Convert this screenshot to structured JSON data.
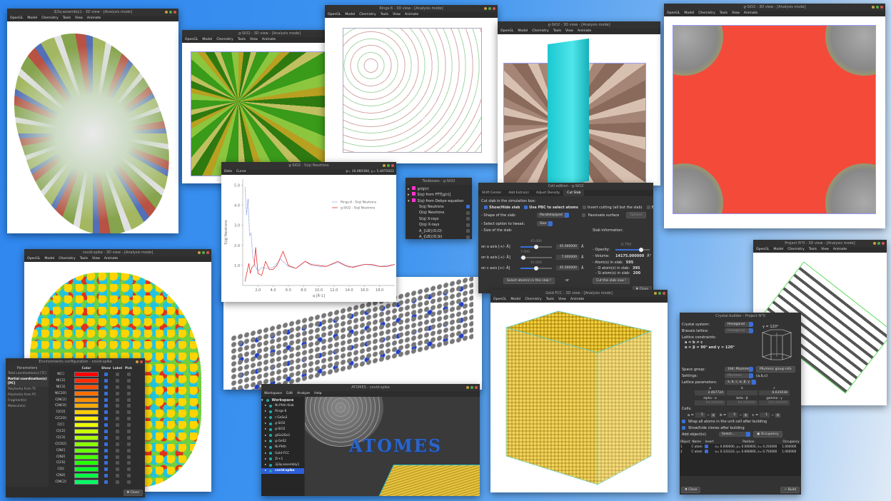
{
  "menus": {
    "view3d": [
      "OpenGL",
      "Model",
      "Chemistry",
      "Tools",
      "View",
      "Animate"
    ],
    "graph": [
      "Data",
      "Curve"
    ],
    "workspace": [
      "Workspace",
      "Edit",
      "Analyze",
      "Help"
    ]
  },
  "windows": {
    "assembly": {
      "title": "3j3q-assembly1 - 3D view - [Analysis mode]"
    },
    "sio2_poly": {
      "title": "g-SiO2 - 3D view - [Analysis mode]"
    },
    "rings": {
      "title": "Rings-6 - 3D view - [Analysis mode]"
    },
    "sio2_slab": {
      "title": "g-SiO2 - 3D view - [Analysis mode]"
    },
    "sio2_red": {
      "title": "g-SiO2 - 3D view - [Analysis mode]"
    },
    "covid": {
      "title": "covid-spike - 3D view - [Analysis mode]"
    },
    "gold": {
      "title": "Gold-FCC - 3D view - [Analysis mode]"
    },
    "project0": {
      "title": "Project N°0 - 3D view - [Analysis mode]"
    }
  },
  "graph": {
    "title": "g-SiO2 - S(q) Neutrons",
    "readout": "p= 16.080384, y= 5.4075022"
  },
  "chart_data": {
    "type": "line",
    "xlabel": "q [Å-1]",
    "ylabel": "S(q) Neutrons",
    "xlim": [
      0,
      20
    ],
    "ylim": [
      0,
      5.3
    ],
    "xticks": [
      "2.0",
      "4.0",
      "6.0",
      "8.0",
      "10.0",
      "12.0",
      "14.0",
      "16.0",
      "18.0"
    ],
    "yticks": [
      "1.0",
      "2.0",
      "3.0",
      "4.0",
      "5.0"
    ],
    "legend_position": "top-right",
    "series": [
      {
        "name": "Rings-6 - S(q) Neutrons",
        "color": "#4a6fd0",
        "style": "dotted",
        "x": [
          0.3,
          0.5,
          0.7,
          0.9,
          1.1,
          1.3,
          1.6,
          2.0,
          2.5,
          3.0,
          4.0,
          5.0,
          6.0,
          7.0,
          8.2,
          9.0,
          10.0,
          11.0,
          12.5,
          14.0,
          16.0,
          18.0,
          20.0
        ],
        "y": [
          4.9,
          3.5,
          4.3,
          2.5,
          2.6,
          1.5,
          1.0,
          0.7,
          0.9,
          0.85,
          0.9,
          1.3,
          0.95,
          0.85,
          1.2,
          1.0,
          0.95,
          0.95,
          1.15,
          0.9,
          1.05,
          0.95,
          1.05
        ]
      },
      {
        "name": "g-SiO2 - S(q) Neutrons",
        "color": "#e83030",
        "style": "solid",
        "x": [
          0.3,
          0.8,
          1.0,
          1.2,
          1.5,
          1.7,
          2.0,
          2.5,
          3.0,
          3.5,
          4.0,
          4.5,
          5.3,
          6.0,
          7.0,
          8.2,
          9.0,
          10.0,
          11.0,
          12.5,
          13.5,
          14.5,
          16.0,
          17.0,
          18.0,
          19.0,
          20.0
        ],
        "y": [
          0.2,
          1.1,
          0.6,
          0.9,
          1.0,
          1.9,
          0.6,
          0.5,
          1.2,
          0.8,
          0.8,
          1.0,
          1.7,
          1.0,
          0.85,
          1.2,
          1.05,
          1.0,
          0.95,
          1.2,
          1.0,
          0.9,
          1.05,
          1.05,
          0.95,
          0.95,
          1.05
        ]
      }
    ]
  },
  "toolboxes": {
    "title": "Toolboxes - g-SiO2",
    "items": [
      {
        "label": "gr/g(r)",
        "level": 0,
        "expander": "▸"
      },
      {
        "label": "S(q) from FFT[g(r)]",
        "level": 0,
        "expander": "▸"
      },
      {
        "label": "S(q) from Debye equation",
        "level": 0,
        "expander": "▾"
      },
      {
        "label": "S(q) Neutrons",
        "level": 1,
        "checked": true
      },
      {
        "label": "Q(q) Neutrons",
        "level": 1,
        "checked": false
      },
      {
        "label": "S(q) X-rays",
        "level": 1,
        "checked": false
      },
      {
        "label": "Q(q) X-rays",
        "level": 1,
        "checked": false
      },
      {
        "label": "A_{LB}(O,O)",
        "level": 1,
        "checked": false
      },
      {
        "label": "A_{LB}(O,Si)",
        "level": 1,
        "checked": false
      }
    ]
  },
  "cell_edition": {
    "title": "Cell edition - g-SiO2",
    "tabs": [
      "Shift Center",
      "Add Extra(s)",
      "Adjust Density",
      "Cut Slab"
    ],
    "active_tab": 3,
    "heading": "Cut slab in the simulation box:",
    "options": [
      {
        "label": "Show/Hide slab",
        "checked": true
      },
      {
        "label": "Use PBC to select atoms",
        "checked": true
      },
      {
        "label": "Invert cutting (all but the slab)",
        "checked": false
      },
      {
        "label": "Export in new project",
        "checked": false
      }
    ],
    "shape_label": "- Shape of the slab:",
    "shape_value": "Parallelepiped",
    "passivate_label": "Passivate surface",
    "options_button": "Options",
    "tweak_label": "- Select option to tweak:",
    "tweak_value": "Size",
    "size_label": "- Size of the slab:",
    "axes": [
      {
        "label": "on a axis [+/- Å]",
        "value": "45.000000",
        "slider_text": "45.000",
        "fraction": 0.5,
        "unit": "Å"
      },
      {
        "label": "on b axis [+/- Å]",
        "value": "7.000000",
        "slider_text": "7.000",
        "fraction": 0.1,
        "unit": "Å"
      },
      {
        "label": "on c axis [+/- Å]",
        "value": "45.000000",
        "slider_text": "45.000",
        "fraction": 0.5,
        "unit": "Å"
      }
    ],
    "info_title": "Slab information:",
    "opacity_label": "- Opacity:",
    "opacity_text": "0.750",
    "opacity": 0.75,
    "volume_label": "- Volume:",
    "volume_value": "14175.000000",
    "volume_unit": "Å³",
    "atoms_label": "- Atom(s) in slab:",
    "atoms_value": "595",
    "o_label": "- O atom(s) in slab:",
    "o_value": "395",
    "si_label": "- Si atom(s) in slab:",
    "si_value": "200",
    "select_button": "Select atom(s) in this slab !",
    "or_label": "or",
    "cut_button": "Cut this slab now !",
    "close_button": "Close"
  },
  "environments": {
    "title": "Environments configuration - covid-spike",
    "params_header": "Parameters",
    "params": [
      "Total coordination(s) [TC]",
      "Partial coordination(s) [PC]",
      "Polyhedra from TC",
      "Polyhedra from PC",
      "Fragment(s)",
      "Molecule(s)"
    ],
    "active_param": 1,
    "columns": [
      "Color",
      "Show",
      "Label",
      "Pick"
    ],
    "rows": [
      {
        "label": "N[C]",
        "color": "#ff0000"
      },
      {
        "label": "N[C2]",
        "color": "#ff2a00"
      },
      {
        "label": "N[C3]",
        "color": "#ff4d00"
      },
      {
        "label": "N[C2O]",
        "color": "#ff6f00"
      },
      {
        "label": "C[NC2]",
        "color": "#ff8c00"
      },
      {
        "label": "C[NCO]",
        "color": "#ffaa00"
      },
      {
        "label": "C[CO]",
        "color": "#ffcc00"
      },
      {
        "label": "C[C2O]",
        "color": "#ffee00"
      },
      {
        "label": "C[C]",
        "color": "#eeff00"
      },
      {
        "label": "C[C2]",
        "color": "#ccff00"
      },
      {
        "label": "C[C3]",
        "color": "#aaff00"
      },
      {
        "label": "C[CO2]",
        "color": "#88ff00"
      },
      {
        "label": "C[NC]",
        "color": "#66ff00"
      },
      {
        "label": "C[N2]",
        "color": "#44ff00"
      },
      {
        "label": "C[CS]",
        "color": "#22ff00"
      },
      {
        "label": "C[S]",
        "color": "#00ff22"
      },
      {
        "label": "C[N3]",
        "color": "#00ff44"
      },
      {
        "label": "C[NC2]",
        "color": "#00ff66"
      }
    ],
    "close_button": "Close"
  },
  "workspace": {
    "title": "ATOMES - covid-spike",
    "root": "Workspace",
    "projects": [
      "Ni-Phth-Slab",
      "Rings-6",
      "r-GeSe2",
      "g-SiO2",
      "g-SiO2",
      "glGe2Se3",
      "g-GeS2",
      "Ni-Phth",
      "Gold-FCC",
      "Zr+1",
      "3j3q-assembly1",
      "covid-spike"
    ],
    "active_project": 11,
    "logo_text": "ATOMES"
  },
  "crystal": {
    "title": "Crystal builder - Project N°0",
    "system_label": "Crystal system:",
    "system_value": "Hexagonal",
    "bravais_label": "Bravais lattice:",
    "bravais_value": "Hexagonal",
    "constraints_label": "Lattice constraints:",
    "constraints_1": "a = b ≠ c",
    "constraints_2": "α = β = 90° and γ = 120°",
    "gamma_note": "γ = 120°",
    "space_group_label": "Space group:",
    "space_group_value": "194: P6₃/mmc",
    "group_info_button": "P6₃/mmc group info",
    "settings_label": "Settings:",
    "settings_value": "P6₃/mmc",
    "settings_note": "(a,b,c)",
    "params_label": "Lattice parameters:",
    "params_value": "a, b, c, α, β, γ",
    "param_headers": [
      "a",
      "b",
      "c"
    ],
    "param_values": [
      "2.467724",
      "",
      "6.635038"
    ],
    "angle_headers": [
      "alpha - α",
      "beta - β",
      "gamma - γ"
    ],
    "angle_values": [
      "90.000000",
      "90.000000",
      "120.000000"
    ],
    "cells_label": "Cells:",
    "cells": [
      {
        "axis": "a =",
        "value": "5"
      },
      {
        "axis": "b =",
        "value": "5"
      },
      {
        "axis": "c =",
        "value": "1"
      }
    ],
    "wrap_label": "Wrap all atoms in the unit cell after building",
    "clones_label": "Show/hide clones after building",
    "add_label": "Add object(s):",
    "add_value": "Select...",
    "occupancy_button": "Occupancy",
    "table_headers": [
      "Object",
      "Name",
      "Insert",
      "Position",
      "Occupancy"
    ],
    "table_rows": [
      {
        "object": "1",
        "name": "C atom",
        "insert": true,
        "position": "x= 0.000000, y= 0.000000, z= 0.250000",
        "occupancy": "1.000000"
      },
      {
        "object": "2",
        "name": "C atom",
        "insert": true,
        "position": "x= 0.333333, y= 0.666666, z= 0.750000",
        "occupancy": "1.000000"
      }
    ],
    "close_button": "Close",
    "build_button": "Build"
  },
  "colors": {
    "accent": "#3b6fd8",
    "window_bg": "#2d2d2d",
    "desktop": "#3f95f0"
  }
}
